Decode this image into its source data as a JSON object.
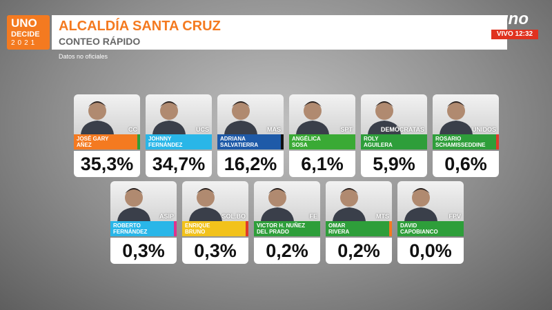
{
  "header": {
    "logo_lines": [
      "UNO",
      "DECIDE",
      "2021"
    ],
    "title": "ALCALDÍA SANTA CRUZ",
    "subtitle": "CONTEO RÁPIDO",
    "note": "Datos no oficiales",
    "channel": "uno",
    "live_label": "VIVO 12:32"
  },
  "candidates": [
    {
      "name_lines": [
        "JOSÉ GARY",
        "AÑEZ"
      ],
      "party": "CC",
      "percent": "35,3%",
      "color": "#f47a20",
      "accent": "#2e9e3a"
    },
    {
      "name_lines": [
        "JOHNNY",
        "FERNÁNDEZ"
      ],
      "party": "UCS",
      "percent": "34,7%",
      "color": "#29b6e8",
      "accent": "#29b6e8"
    },
    {
      "name_lines": [
        "ADRIANA",
        "SALVATIERRA"
      ],
      "party": "MAS",
      "percent": "16,2%",
      "color": "#1e5aa8",
      "accent": "#111111"
    },
    {
      "name_lines": [
        "ANGÉLICA",
        "SOSA"
      ],
      "party": "SPT",
      "percent": "6,1%",
      "color": "#3aaa35",
      "accent": "#3aaa35"
    },
    {
      "name_lines": [
        "ROLY",
        "AGUILERA"
      ],
      "party": "DEMÓCRATAS",
      "percent": "5,9%",
      "color": "#2e9e3a",
      "accent": "#2e9e3a"
    },
    {
      "name_lines": [
        "ROSARIO",
        "SCHAMISSEDDINE"
      ],
      "party": "UNIDOS",
      "percent": "0,6%",
      "color": "#2e9e3a",
      "accent": "#e03a2a"
    },
    {
      "name_lines": [
        "ROBERTO",
        "FERNÁNDEZ"
      ],
      "party": "ASIP",
      "percent": "0,3%",
      "color": "#29b6e8",
      "accent": "#e0328c"
    },
    {
      "name_lines": [
        "ENRIQUE",
        "BRUNO"
      ],
      "party": "SOL.BO",
      "percent": "0,3%",
      "color": "#f2c21b",
      "accent": "#e03a2a"
    },
    {
      "name_lines": [
        "VICTOR H. NUÑEZ",
        "DEL PRADO"
      ],
      "party": "FE",
      "percent": "0,2%",
      "color": "#2e9e3a",
      "accent": "#2e9e3a"
    },
    {
      "name_lines": [
        "OMAR",
        "RIVERA"
      ],
      "party": "MTS",
      "percent": "0,2%",
      "color": "#2e9e3a",
      "accent": "#f47a20"
    },
    {
      "name_lines": [
        "DAVID",
        "CAPOBIANCO"
      ],
      "party": "FPV",
      "percent": "0,0%",
      "color": "#2e9e3a",
      "accent": "#2e9e3a"
    }
  ]
}
